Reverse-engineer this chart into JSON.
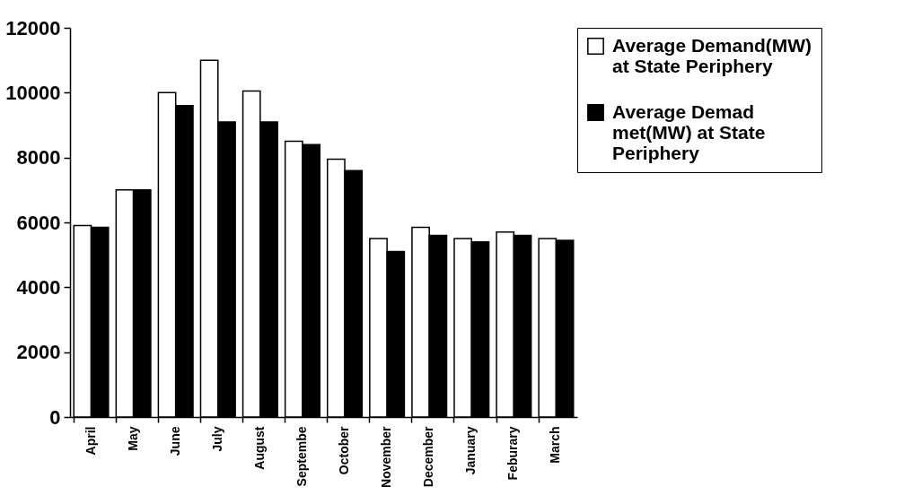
{
  "chart_data": {
    "type": "bar",
    "categories": [
      "April",
      "May",
      "June",
      "July",
      "August",
      "Septembe",
      "October",
      "November",
      "December",
      "January",
      "Feburary",
      "March"
    ],
    "series": [
      {
        "name": "Average Demand(MW) at State Periphery",
        "color": "#ffffff",
        "values": [
          5900,
          7000,
          10000,
          11000,
          10050,
          8500,
          7950,
          5500,
          5850,
          5500,
          5700,
          5500
        ]
      },
      {
        "name": "Average Demad met(MW) at State Periphery",
        "color": "#000000",
        "values": [
          5850,
          7000,
          9600,
          9100,
          9100,
          8400,
          7600,
          5100,
          5600,
          5400,
          5600,
          5450
        ]
      }
    ],
    "ylim": [
      0,
      12000
    ],
    "yticks": [
      0,
      2000,
      4000,
      6000,
      8000,
      10000,
      12000
    ],
    "grid": false,
    "legend": "right"
  }
}
